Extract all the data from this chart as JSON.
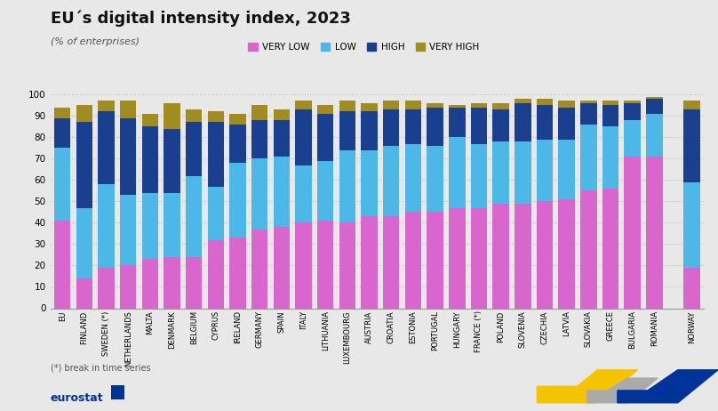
{
  "title": "EU´s digital intensity index, 2023",
  "subtitle": "(% of enterprises)",
  "categories": [
    "EU",
    "FINLAND",
    "SWEDEN (*)",
    "NETHERLANDS",
    "MALTA",
    "DENMARK",
    "BELGIUM",
    "CYPRUS",
    "IRELAND",
    "GERMANY",
    "SPAIN",
    "ITALY",
    "LITHUANIA",
    "LUXEMBOURG",
    "AUSTRIA",
    "CROATIA",
    "ESTONIA",
    "PORTUGAL",
    "HUNGARY",
    "FRANCE (*)",
    "POLAND",
    "SLOVENIA",
    "CZECHIA",
    "LATVIA",
    "SLOVAKIA",
    "GREECE",
    "BULGARIA",
    "ROMANIA",
    "NORWAY"
  ],
  "very_low": [
    41,
    14,
    19,
    20,
    23,
    24,
    24,
    32,
    33,
    37,
    38,
    40,
    41,
    40,
    43,
    43,
    45,
    45,
    47,
    47,
    49,
    49,
    50,
    51,
    55,
    56,
    71,
    71,
    19
  ],
  "low": [
    34,
    33,
    39,
    33,
    31,
    30,
    38,
    25,
    35,
    33,
    33,
    27,
    28,
    34,
    31,
    33,
    32,
    31,
    33,
    30,
    29,
    29,
    29,
    28,
    31,
    29,
    17,
    20,
    40
  ],
  "high": [
    14,
    40,
    34,
    36,
    31,
    30,
    25,
    30,
    18,
    18,
    17,
    26,
    22,
    18,
    18,
    17,
    16,
    18,
    14,
    17,
    15,
    18,
    16,
    15,
    10,
    10,
    8,
    7,
    34
  ],
  "very_high": [
    5,
    8,
    5,
    8,
    6,
    12,
    6,
    5,
    5,
    7,
    5,
    4,
    4,
    5,
    4,
    4,
    4,
    2,
    1,
    2,
    3,
    2,
    3,
    3,
    1,
    2,
    1,
    1,
    4
  ],
  "colors": {
    "very_low": "#d966cc",
    "low": "#4db8e8",
    "high": "#1a3f8f",
    "very_high": "#a08c20"
  },
  "legend_labels": [
    "VERY LOW",
    "LOW",
    "HIGH",
    "VERY HIGH"
  ],
  "footnote": "(*) break in time series",
  "ylim": [
    0,
    100
  ],
  "yticks": [
    0,
    10,
    20,
    30,
    40,
    50,
    60,
    70,
    80,
    90,
    100
  ],
  "bg_color": "#e8e8e8",
  "plot_bg": "#e8e8e8",
  "grid_color": "#bbbbbb"
}
